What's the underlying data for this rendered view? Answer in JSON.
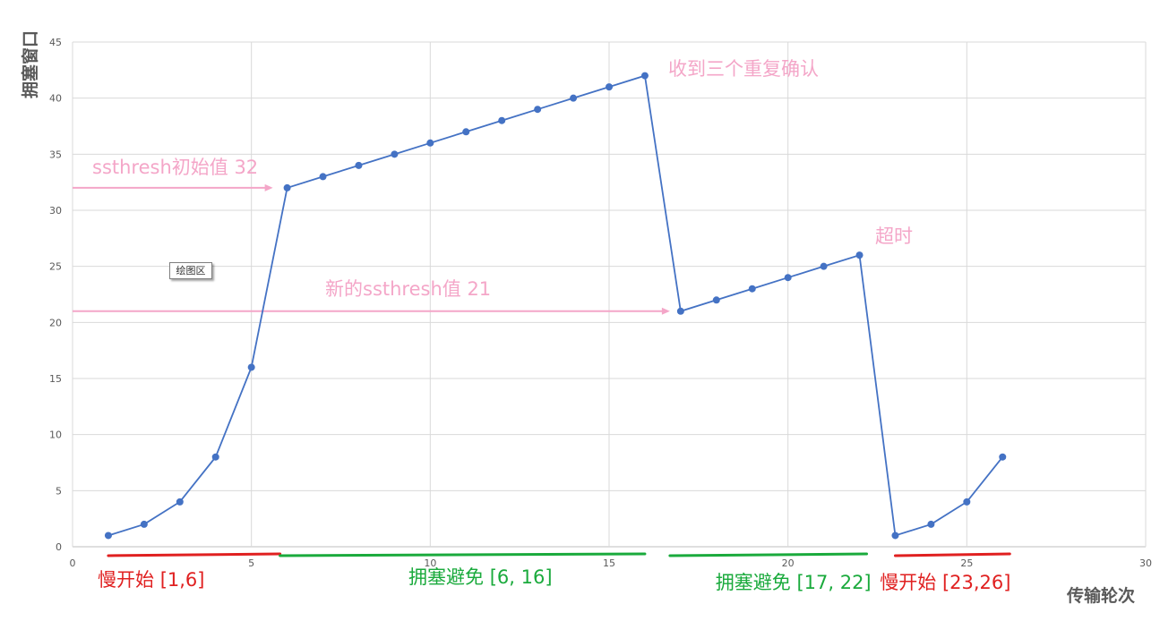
{
  "chart_data": {
    "type": "line",
    "title": "",
    "xlabel": "传输轮次",
    "ylabel": "拥塞窗口",
    "xlim": [
      0,
      30
    ],
    "ylim": [
      0,
      45
    ],
    "xticks": [
      0,
      5,
      10,
      15,
      20,
      25,
      30
    ],
    "yticks": [
      0,
      5,
      10,
      15,
      20,
      25,
      30,
      35,
      40,
      45
    ],
    "grid": true,
    "legend": "none",
    "series": [
      {
        "color": "#4472c4",
        "points": [
          [
            1,
            1
          ],
          [
            2,
            2
          ],
          [
            3,
            4
          ],
          [
            4,
            8
          ],
          [
            5,
            16
          ],
          [
            6,
            32
          ],
          [
            7,
            33
          ],
          [
            8,
            34
          ],
          [
            9,
            35
          ],
          [
            10,
            36
          ],
          [
            11,
            37
          ],
          [
            12,
            38
          ],
          [
            13,
            39
          ],
          [
            14,
            40
          ],
          [
            15,
            41
          ],
          [
            16,
            42
          ],
          [
            17,
            21
          ],
          [
            18,
            22
          ],
          [
            19,
            23
          ],
          [
            20,
            24
          ],
          [
            21,
            25
          ],
          [
            22,
            26
          ],
          [
            23,
            1
          ],
          [
            24,
            2
          ],
          [
            25,
            4
          ],
          [
            26,
            8
          ]
        ]
      }
    ],
    "annotations": {
      "ssthresh_initial": {
        "text": "ssthresh初始值 32",
        "arrow": {
          "from": [
            0,
            32
          ],
          "to": [
            5.6,
            32
          ]
        }
      },
      "ssthresh_new": {
        "text": "新的ssthresh值 21",
        "arrow": {
          "from": [
            0,
            21
          ],
          "to": [
            16.7,
            21
          ]
        }
      },
      "triple_ack": {
        "text": "收到三个重复确认"
      },
      "timeout": {
        "text": "超时"
      }
    },
    "phases": [
      {
        "label": "慢开始 [1,6]",
        "range": [
          1,
          5.8
        ],
        "color": "#e02020"
      },
      {
        "label": "拥塞避免 [6, 16]",
        "range": [
          5.8,
          16
        ],
        "color": "#1aaa3c"
      },
      {
        "label": "拥塞避免 [17, 22]",
        "range": [
          16.7,
          22.2
        ],
        "color": "#1aaa3c"
      },
      {
        "label": "慢开始 [23,26]",
        "range": [
          23,
          26.2
        ],
        "color": "#e02020"
      }
    ],
    "colors": {
      "pink": "#f4a6c8",
      "grid": "#d9d9d9",
      "axis_text": "#595959"
    }
  },
  "tooltip": {
    "text": "绘图区"
  }
}
